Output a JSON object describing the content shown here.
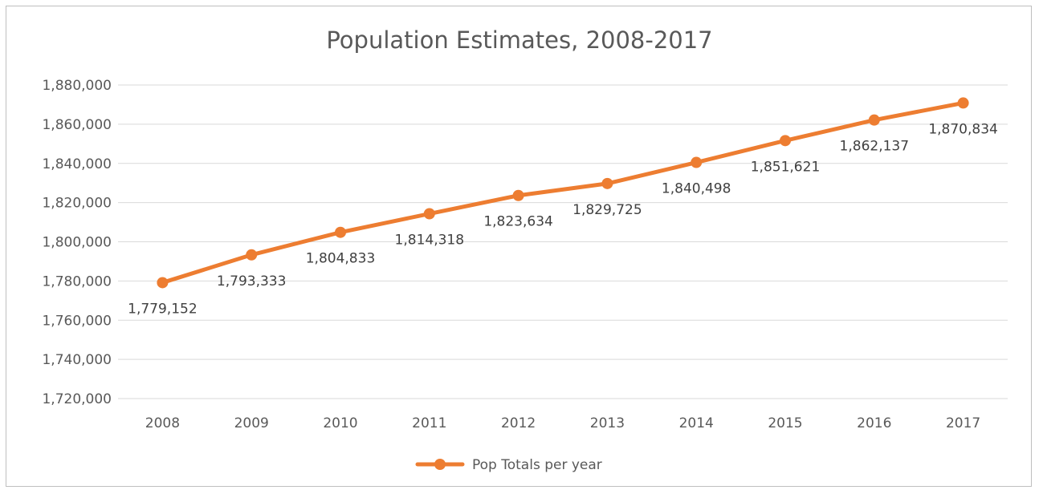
{
  "chart_data": {
    "type": "line",
    "title": "Population Estimates, 2008-2017",
    "xlabel": "",
    "ylabel": "",
    "categories": [
      "2008",
      "2009",
      "2010",
      "2011",
      "2012",
      "2013",
      "2014",
      "2015",
      "2016",
      "2017"
    ],
    "series": [
      {
        "name": "Pop Totals per year",
        "values": [
          1779152,
          1793333,
          1804833,
          1814318,
          1823634,
          1829725,
          1840498,
          1851621,
          1862137,
          1870834
        ],
        "labels": [
          "1,779,152",
          "1,793,333",
          "1,804,833",
          "1,814,318",
          "1,823,634",
          "1,829,725",
          "1,840,498",
          "1,851,621",
          "1,862,137",
          "1,870,834"
        ],
        "color": "#ed7d31"
      }
    ],
    "ylim": [
      1720000,
      1880000
    ],
    "yticks": [
      1720000,
      1740000,
      1760000,
      1780000,
      1800000,
      1820000,
      1840000,
      1860000,
      1880000
    ],
    "ytick_labels": [
      "1,720,000",
      "1,740,000",
      "1,760,000",
      "1,780,000",
      "1,800,000",
      "1,820,000",
      "1,840,000",
      "1,860,000",
      "1,880,000"
    ],
    "grid": true,
    "legend_position": "bottom",
    "colors": {
      "gridline": "#d9d9d9",
      "axis_text": "#595959",
      "border": "#bfbfbf"
    }
  }
}
